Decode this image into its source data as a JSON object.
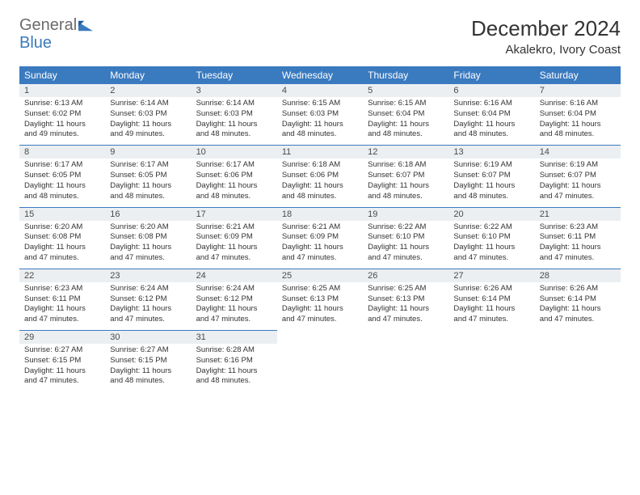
{
  "brand": {
    "word1": "General",
    "word2": "Blue"
  },
  "title": "December 2024",
  "location": "Akalekro, Ivory Coast",
  "colors": {
    "header_bg": "#3a7abf",
    "header_text": "#ffffff",
    "daynum_bg": "#eceff1",
    "rule": "#3a7abf",
    "body_text": "#333333",
    "page_bg": "#ffffff"
  },
  "typography": {
    "title_fontsize": 26,
    "location_fontsize": 15,
    "header_fontsize": 12,
    "cell_fontsize": 9.5
  },
  "weekdays": [
    "Sunday",
    "Monday",
    "Tuesday",
    "Wednesday",
    "Thursday",
    "Friday",
    "Saturday"
  ],
  "weeks": [
    [
      {
        "n": "1",
        "sr": "6:13 AM",
        "ss": "6:02 PM",
        "dl": "11 hours and 49 minutes."
      },
      {
        "n": "2",
        "sr": "6:14 AM",
        "ss": "6:03 PM",
        "dl": "11 hours and 49 minutes."
      },
      {
        "n": "3",
        "sr": "6:14 AM",
        "ss": "6:03 PM",
        "dl": "11 hours and 48 minutes."
      },
      {
        "n": "4",
        "sr": "6:15 AM",
        "ss": "6:03 PM",
        "dl": "11 hours and 48 minutes."
      },
      {
        "n": "5",
        "sr": "6:15 AM",
        "ss": "6:04 PM",
        "dl": "11 hours and 48 minutes."
      },
      {
        "n": "6",
        "sr": "6:16 AM",
        "ss": "6:04 PM",
        "dl": "11 hours and 48 minutes."
      },
      {
        "n": "7",
        "sr": "6:16 AM",
        "ss": "6:04 PM",
        "dl": "11 hours and 48 minutes."
      }
    ],
    [
      {
        "n": "8",
        "sr": "6:17 AM",
        "ss": "6:05 PM",
        "dl": "11 hours and 48 minutes."
      },
      {
        "n": "9",
        "sr": "6:17 AM",
        "ss": "6:05 PM",
        "dl": "11 hours and 48 minutes."
      },
      {
        "n": "10",
        "sr": "6:17 AM",
        "ss": "6:06 PM",
        "dl": "11 hours and 48 minutes."
      },
      {
        "n": "11",
        "sr": "6:18 AM",
        "ss": "6:06 PM",
        "dl": "11 hours and 48 minutes."
      },
      {
        "n": "12",
        "sr": "6:18 AM",
        "ss": "6:07 PM",
        "dl": "11 hours and 48 minutes."
      },
      {
        "n": "13",
        "sr": "6:19 AM",
        "ss": "6:07 PM",
        "dl": "11 hours and 48 minutes."
      },
      {
        "n": "14",
        "sr": "6:19 AM",
        "ss": "6:07 PM",
        "dl": "11 hours and 47 minutes."
      }
    ],
    [
      {
        "n": "15",
        "sr": "6:20 AM",
        "ss": "6:08 PM",
        "dl": "11 hours and 47 minutes."
      },
      {
        "n": "16",
        "sr": "6:20 AM",
        "ss": "6:08 PM",
        "dl": "11 hours and 47 minutes."
      },
      {
        "n": "17",
        "sr": "6:21 AM",
        "ss": "6:09 PM",
        "dl": "11 hours and 47 minutes."
      },
      {
        "n": "18",
        "sr": "6:21 AM",
        "ss": "6:09 PM",
        "dl": "11 hours and 47 minutes."
      },
      {
        "n": "19",
        "sr": "6:22 AM",
        "ss": "6:10 PM",
        "dl": "11 hours and 47 minutes."
      },
      {
        "n": "20",
        "sr": "6:22 AM",
        "ss": "6:10 PM",
        "dl": "11 hours and 47 minutes."
      },
      {
        "n": "21",
        "sr": "6:23 AM",
        "ss": "6:11 PM",
        "dl": "11 hours and 47 minutes."
      }
    ],
    [
      {
        "n": "22",
        "sr": "6:23 AM",
        "ss": "6:11 PM",
        "dl": "11 hours and 47 minutes."
      },
      {
        "n": "23",
        "sr": "6:24 AM",
        "ss": "6:12 PM",
        "dl": "11 hours and 47 minutes."
      },
      {
        "n": "24",
        "sr": "6:24 AM",
        "ss": "6:12 PM",
        "dl": "11 hours and 47 minutes."
      },
      {
        "n": "25",
        "sr": "6:25 AM",
        "ss": "6:13 PM",
        "dl": "11 hours and 47 minutes."
      },
      {
        "n": "26",
        "sr": "6:25 AM",
        "ss": "6:13 PM",
        "dl": "11 hours and 47 minutes."
      },
      {
        "n": "27",
        "sr": "6:26 AM",
        "ss": "6:14 PM",
        "dl": "11 hours and 47 minutes."
      },
      {
        "n": "28",
        "sr": "6:26 AM",
        "ss": "6:14 PM",
        "dl": "11 hours and 47 minutes."
      }
    ],
    [
      {
        "n": "29",
        "sr": "6:27 AM",
        "ss": "6:15 PM",
        "dl": "11 hours and 47 minutes."
      },
      {
        "n": "30",
        "sr": "6:27 AM",
        "ss": "6:15 PM",
        "dl": "11 hours and 48 minutes."
      },
      {
        "n": "31",
        "sr": "6:28 AM",
        "ss": "6:16 PM",
        "dl": "11 hours and 48 minutes."
      },
      null,
      null,
      null,
      null
    ]
  ],
  "labels": {
    "sunrise": "Sunrise: ",
    "sunset": "Sunset: ",
    "daylight": "Daylight: "
  }
}
